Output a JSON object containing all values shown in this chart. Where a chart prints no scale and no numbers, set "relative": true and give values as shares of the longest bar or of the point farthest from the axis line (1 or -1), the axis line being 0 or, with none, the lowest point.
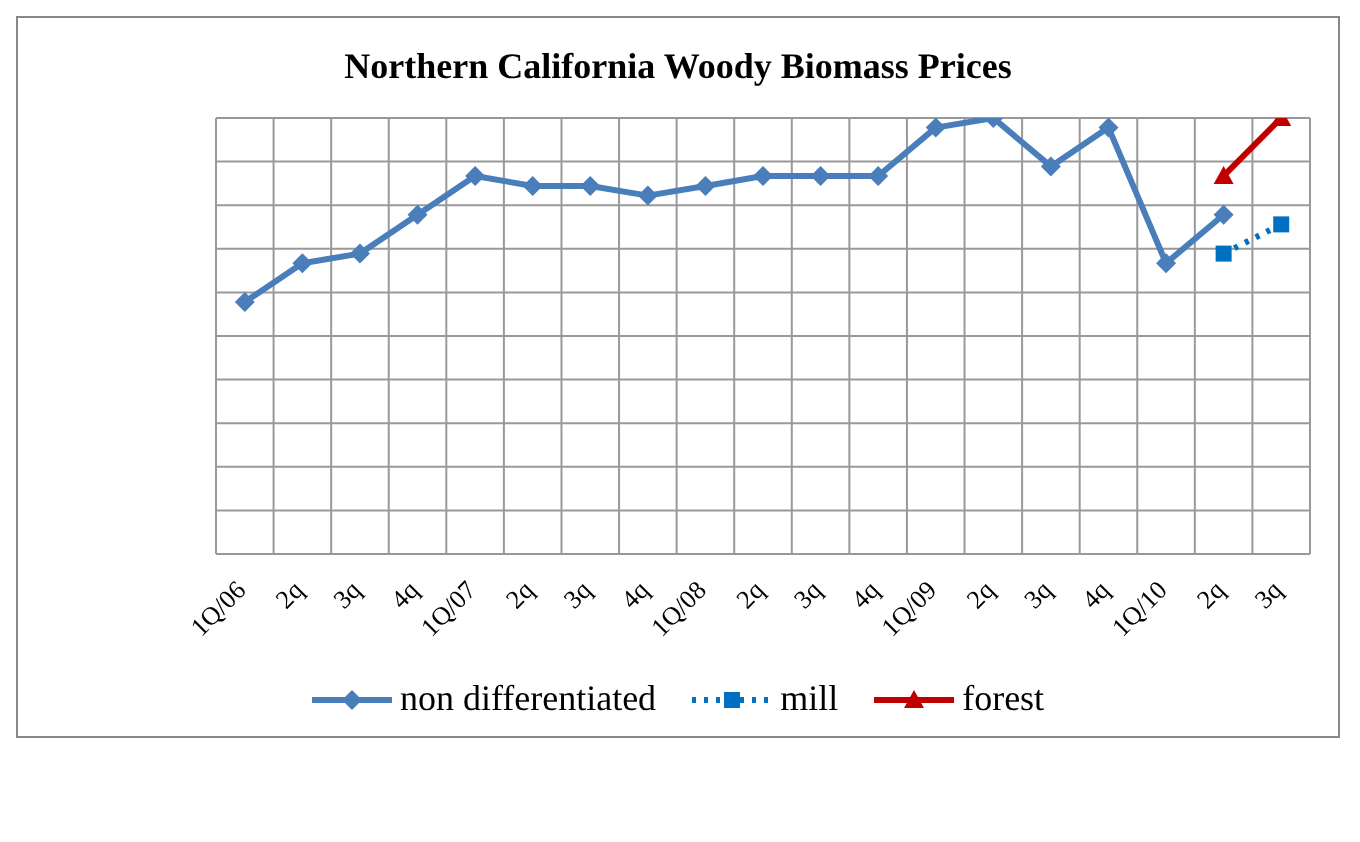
{
  "chart_data": {
    "type": "line",
    "title": "Northern California Woody Biomass Prices",
    "categories": [
      "1Q/06",
      "2q",
      "3q",
      "4q",
      "1Q/07",
      "2q",
      "3q",
      "4q",
      "1Q/08",
      "2q",
      "3q",
      "4q",
      "1Q/09",
      "2q",
      "3q",
      "4q",
      "1Q/10",
      "2q",
      "3q"
    ],
    "relative": true,
    "grid": true,
    "legend": "bottom",
    "series": [
      {
        "name": "non differentiated",
        "color": "#4a7ebb",
        "marker": "diamond",
        "line_style": "solid",
        "values": [
          0.578,
          0.667,
          0.689,
          0.778,
          0.867,
          0.844,
          0.844,
          0.822,
          0.844,
          0.867,
          0.867,
          0.867,
          0.978,
          1,
          0.889,
          0.978,
          0.667,
          0.778,
          null
        ]
      },
      {
        "name": "mill",
        "color": "#0070c0",
        "marker": "square",
        "line_style": "dotted",
        "values": [
          null,
          null,
          null,
          null,
          null,
          null,
          null,
          null,
          null,
          null,
          null,
          null,
          null,
          null,
          null,
          null,
          null,
          0.689,
          0.756
        ]
      },
      {
        "name": "forest",
        "color": "#c00000",
        "marker": "triangle",
        "line_style": "solid",
        "values": [
          null,
          null,
          null,
          null,
          null,
          null,
          null,
          null,
          null,
          null,
          null,
          null,
          null,
          null,
          null,
          null,
          null,
          0.867,
          1
        ]
      }
    ]
  }
}
